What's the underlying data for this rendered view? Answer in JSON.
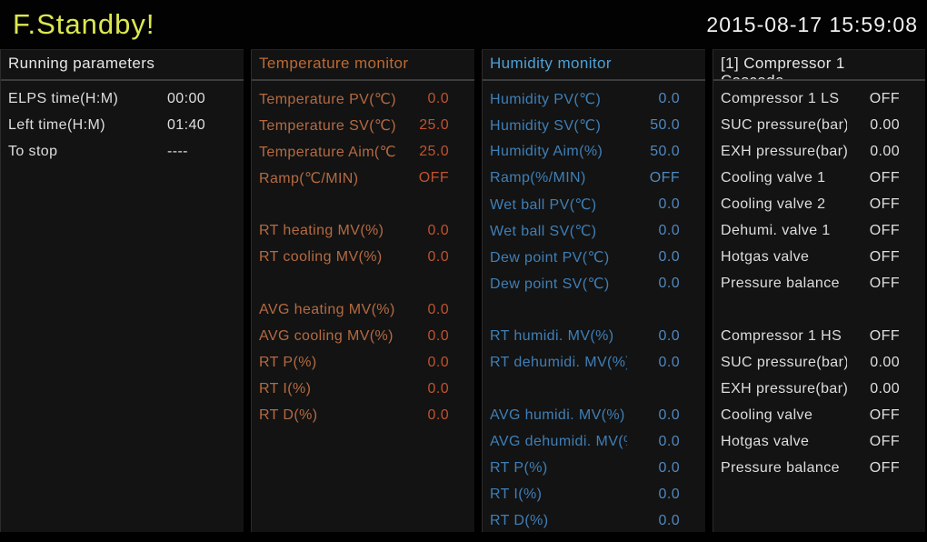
{
  "topbar": {
    "status_title": "F.Standby!",
    "datetime": "2015-08-17 15:59:08"
  },
  "colors": {
    "title_green": "#dce750",
    "orange_header": "#bc6a33",
    "orange_label": "#b56a41",
    "orange_value": "#c0522f",
    "blue_header": "#4da0d6",
    "blue_label": "#3f7fb7",
    "blue_value": "#4f87be",
    "panel_bg": "#131313",
    "background": "#000000",
    "white_text": "#dedede"
  },
  "panels": [
    {
      "id": "running-parameters",
      "title": "Running parameters",
      "theme": "white",
      "rows": [
        {
          "label": "ELPS time(H:M)",
          "value": "00:00"
        },
        {
          "label": "Left time(H:M)",
          "value": "01:40"
        },
        {
          "label": "To stop",
          "value": "----"
        }
      ]
    },
    {
      "id": "temperature-monitor",
      "title": "Temperature monitor",
      "theme": "orange",
      "rows": [
        {
          "label": "Temperature PV(℃)",
          "value": "0.0"
        },
        {
          "label": "Temperature SV(℃)",
          "value": "25.0"
        },
        {
          "label": "Temperature Aim(℃)",
          "value": "25.0"
        },
        {
          "label": "Ramp(℃/MIN)",
          "value": "OFF"
        },
        {
          "spacer": true
        },
        {
          "label": "RT heating MV(%)",
          "value": "0.0"
        },
        {
          "label": "RT cooling MV(%)",
          "value": "0.0"
        },
        {
          "spacer": true
        },
        {
          "label": "AVG heating MV(%)",
          "value": "0.0"
        },
        {
          "label": "AVG cooling MV(%)",
          "value": "0.0"
        },
        {
          "label": "RT P(%)",
          "value": "0.0"
        },
        {
          "label": "RT I(%)",
          "value": "0.0"
        },
        {
          "label": "RT D(%)",
          "value": "0.0"
        }
      ]
    },
    {
      "id": "humidity-monitor",
      "title": "Humidity monitor",
      "theme": "blue",
      "rows": [
        {
          "label": "Humidity PV(℃)",
          "value": "0.0"
        },
        {
          "label": "Humidity SV(℃)",
          "value": "50.0"
        },
        {
          "label": "Humidity Aim(%)",
          "value": "50.0"
        },
        {
          "label": "Ramp(%/MIN)",
          "value": "OFF"
        },
        {
          "label": "Wet ball PV(℃)",
          "value": "0.0"
        },
        {
          "label": "Wet ball SV(℃)",
          "value": "0.0"
        },
        {
          "label": "Dew point PV(℃)",
          "value": "0.0"
        },
        {
          "label": "Dew point SV(℃)",
          "value": "0.0"
        },
        {
          "spacer": true
        },
        {
          "label": "RT humidi. MV(%)",
          "value": "0.0"
        },
        {
          "label": "RT dehumidi. MV(%)",
          "value": "0.0"
        },
        {
          "spacer": true
        },
        {
          "label": "AVG humidi. MV(%)",
          "value": "0.0"
        },
        {
          "label": "AVG dehumidi. MV(%)",
          "value": "0.0"
        },
        {
          "label": "RT P(%)",
          "value": "0.0"
        },
        {
          "label": "RT I(%)",
          "value": "0.0"
        },
        {
          "label": "RT D(%)",
          "value": "0.0"
        }
      ]
    },
    {
      "id": "compressor-1-cascade",
      "title": "[1] Compressor 1",
      "title2": "Cascade",
      "theme": "white",
      "rows": [
        {
          "label": "Compressor 1 LS",
          "value": "OFF"
        },
        {
          "label": "SUC pressure(bar)",
          "value": "0.00"
        },
        {
          "label": "EXH pressure(bar)",
          "value": "0.00"
        },
        {
          "label": "Cooling valve 1",
          "value": "OFF"
        },
        {
          "label": "Cooling valve 2",
          "value": "OFF"
        },
        {
          "label": "Dehumi. valve 1",
          "value": "OFF"
        },
        {
          "label": "Hotgas valve",
          "value": "OFF"
        },
        {
          "label": "Pressure balance",
          "value": "OFF"
        },
        {
          "spacer": true
        },
        {
          "label": "Compressor 1 HS",
          "value": "OFF"
        },
        {
          "label": "SUC pressure(bar)",
          "value": "0.00"
        },
        {
          "label": "EXH pressure(bar)",
          "value": "0.00"
        },
        {
          "label": "Cooling valve",
          "value": "OFF"
        },
        {
          "label": "Hotgas valve",
          "value": "OFF"
        },
        {
          "label": "Pressure balance",
          "value": "OFF"
        }
      ]
    }
  ]
}
